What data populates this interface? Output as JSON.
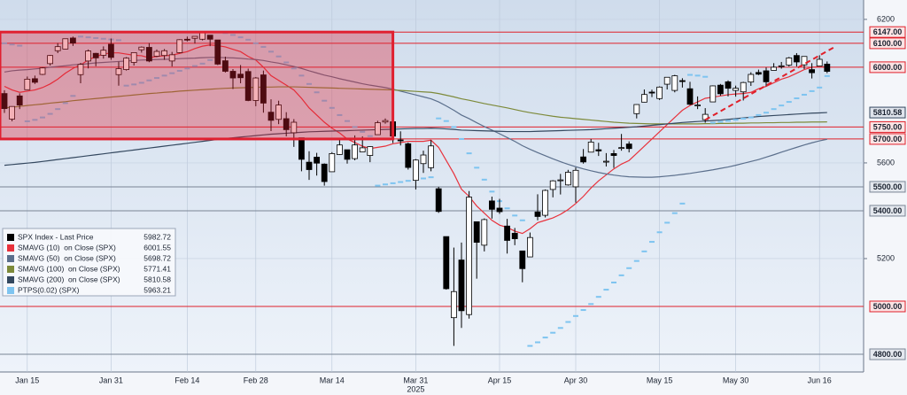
{
  "chart_data": {
    "type": "candlestick",
    "year_label": "2025",
    "categories": [
      null,
      null,
      null,
      "Jan 15",
      null,
      null,
      null,
      null,
      null,
      null,
      null,
      null,
      null,
      null,
      "Jan 31",
      null,
      null,
      null,
      null,
      null,
      null,
      null,
      null,
      null,
      "Feb 14",
      null,
      null,
      null,
      null,
      null,
      null,
      null,
      null,
      "Feb 28",
      null,
      null,
      null,
      null,
      null,
      null,
      null,
      null,
      null,
      "Mar 14",
      null,
      null,
      null,
      null,
      null,
      null,
      null,
      null,
      null,
      null,
      "Mar 31",
      null,
      null,
      null,
      null,
      null,
      null,
      null,
      null,
      null,
      null,
      "Apr 15",
      null,
      null,
      null,
      null,
      null,
      null,
      null,
      null,
      null,
      "Apr 30",
      null,
      null,
      null,
      null,
      null,
      null,
      null,
      null,
      null,
      null,
      "May 15",
      null,
      null,
      null,
      null,
      null,
      null,
      null,
      null,
      null,
      "May 30",
      null,
      null,
      null,
      null,
      null,
      null,
      null,
      null,
      null,
      null,
      "Jun 16",
      null
    ],
    "ylim": [
      4726,
      6281
    ],
    "yticks": [
      6200,
      5600,
      5200
    ],
    "grid": true,
    "background": [
      "#cfdcec",
      "#eef3fa"
    ],
    "levels": [
      {
        "value": 6147,
        "label": "6147.00",
        "color": "#e0202a"
      },
      {
        "value": 6100,
        "label": "6100.00",
        "color": "#e0202a"
      },
      {
        "value": 6000,
        "label": "6000.00",
        "color": "#e0202a"
      },
      {
        "value": 5750,
        "label": "5750.00",
        "color": "#e0202a"
      },
      {
        "value": 5700,
        "label": "5700.00",
        "color": "#e0202a"
      },
      {
        "value": 5500,
        "label": "5500.00",
        "color": "#7a8595"
      },
      {
        "value": 5400,
        "label": "5400.00",
        "color": "#7a8595"
      },
      {
        "value": 5000,
        "label": "5000.00",
        "color": "#e0202a"
      },
      {
        "value": 4800,
        "label": "4800.00",
        "color": "#7a8595"
      }
    ],
    "highlight_box": {
      "x": [
        0,
        51
      ],
      "y": [
        5700,
        6147
      ],
      "color": "#e02030"
    },
    "trend_line": {
      "x": [
        92,
        109
      ],
      "y": [
        5780,
        6085
      ],
      "color": "#e0202a"
    },
    "series": [
      {
        "name": "SPX Index - Last Price",
        "kind": "candle",
        "color": "#000000",
        "open": [
          5890,
          5783,
          5880,
          5906,
          5952,
          5970,
          6015,
          6069,
          6076,
          6122,
          5969,
          6026,
          6058,
          6050,
          6096,
          5969,
          5990,
          6020,
          6073,
          6083,
          6046,
          6049,
          6026,
          6061,
          6117,
          6121,
          6117,
          6134,
          6114,
          6027,
          5983,
          5971,
          5982,
          5861,
          5968,
          5812,
          5782,
          5785,
          5726,
          5705,
          5603,
          5624,
          5595,
          5563,
          5635,
          5655,
          5618,
          5646,
          5631,
          5718,
          5771,
          5772,
          5696,
          5680,
          5527,
          5597,
          5580,
          5492,
          5292,
          4953,
          5194,
          4966,
          5354,
          5256,
          5441,
          5411,
          5336,
          5306,
          5232,
          5207,
          5395,
          5381,
          5489,
          5529,
          5508,
          5500,
          5625,
          5645,
          5655,
          5605,
          5639,
          5663,
          5679,
          5806,
          5854,
          5896,
          5869,
          5929,
          5903,
          5944,
          5910,
          5842,
          5781,
          5855,
          5925,
          5939,
          5903,
          5897,
          5938,
          5978,
          5985,
          5987,
          6005,
          6009,
          6049,
          6010,
          5990,
          6005,
          6013
        ],
        "high": [
          5904,
          5837,
          5891,
          5961,
          5965,
          6000,
          6051,
          6101,
          6119,
          6128,
          6018,
          6074,
          6060,
          6087,
          6120,
          6023,
          6042,
          6062,
          6087,
          6101,
          6074,
          6076,
          6064,
          6117,
          6128,
          6129,
          6147,
          6134,
          6114,
          6044,
          5992,
          6009,
          5994,
          5959,
          5986,
          5866,
          5860,
          5812,
          5783,
          5705,
          5649,
          5642,
          5598,
          5645,
          5703,
          5655,
          5715,
          5711,
          5670,
          5776,
          5786,
          5775,
          5732,
          5685,
          5616,
          5651,
          5695,
          5500,
          5292,
          5246,
          5267,
          5482,
          5354,
          5368,
          5459,
          5450,
          5366,
          5328,
          5232,
          5309,
          5469,
          5489,
          5528,
          5554,
          5571,
          5581,
          5658,
          5700,
          5684,
          5641,
          5654,
          5721,
          5690,
          5845,
          5907,
          5906,
          5920,
          5958,
          5968,
          5954,
          5939,
          5878,
          5829,
          5924,
          5930,
          5945,
          5923,
          5939,
          5979,
          5990,
          5999,
          6017,
          6022,
          6043,
          6059,
          6045,
          6017,
          6050,
          6024
        ],
        "low": [
          5809,
          5774,
          5825,
          5906,
          5930,
          5967,
          6007,
          6059,
          6075,
          6089,
          5933,
          5995,
          6004,
          6036,
          6031,
          5923,
          5986,
          6007,
          6061,
          6021,
          6042,
          6031,
          6003,
          6058,
          6108,
          6099,
          6112,
          6088,
          6009,
          5978,
          5909,
          5933,
          5858,
          5837,
          5810,
          5733,
          5762,
          5711,
          5667,
          5565,
          5529,
          5547,
          5505,
          5563,
          5633,
          5597,
          5611,
          5652,
          5603,
          5718,
          5764,
          5683,
          5673,
          5572,
          5489,
          5558,
          5565,
          5391,
          5070,
          4835,
          4910,
          4949,
          5116,
          5230,
          5367,
          5387,
          5221,
          5256,
          5101,
          5207,
          5360,
          5372,
          5456,
          5468,
          5505,
          5434,
          5597,
          5645,
          5629,
          5585,
          5579,
          5651,
          5644,
          5786,
          5853,
          5875,
          5863,
          5907,
          5895,
          5915,
          5842,
          5825,
          5768,
          5855,
          5881,
          5878,
          5877,
          5861,
          5922,
          5967,
          5921,
          5987,
          5994,
          6003,
          6003,
          5992,
          5953,
          6005,
          5975
        ],
        "values": [
          5827,
          5836,
          5842,
          5950,
          5937,
          5997,
          6049,
          6086,
          6119,
          6101,
          6012,
          6068,
          6039,
          6071,
          6041,
          5994,
          6038,
          6061,
          6084,
          6026,
          6066,
          6069,
          6052,
          6115,
          6115,
          6129,
          6144,
          6117,
          6013,
          5983,
          5955,
          5956,
          5861,
          5955,
          5850,
          5778,
          5842,
          5739,
          5770,
          5615,
          5572,
          5599,
          5522,
          5639,
          5675,
          5615,
          5675,
          5663,
          5668,
          5768,
          5777,
          5712,
          5693,
          5581,
          5612,
          5633,
          5671,
          5397,
          5074,
          5062,
          4982,
          5457,
          5268,
          5363,
          5406,
          5396,
          5276,
          5283,
          5158,
          5288,
          5376,
          5485,
          5525,
          5529,
          5561,
          5569,
          5604,
          5687,
          5650,
          5607,
          5631,
          5664,
          5660,
          5844,
          5886,
          5892,
          5917,
          5958,
          5964,
          5940,
          5845,
          5842,
          5803,
          5922,
          5889,
          5912,
          5912,
          5936,
          5970,
          5971,
          5939,
          6000,
          6006,
          6039,
          6022,
          6045,
          5977,
          6033,
          5982.72
        ]
      },
      {
        "name": "SMAVG (10)  on Close (SPX)",
        "kind": "line",
        "color": "#e8323c",
        "values": [
          5920,
          5905,
          5895,
          5900,
          5905,
          5915,
          5930,
          5950,
          5975,
          5995,
          6010,
          6030,
          6045,
          6055,
          6060,
          6060,
          6055,
          6050,
          6048,
          6040,
          6045,
          6048,
          6050,
          6058,
          6065,
          6078,
          6088,
          6093,
          6090,
          6085,
          6075,
          6065,
          6045,
          6030,
          6000,
          5965,
          5945,
          5925,
          5905,
          5870,
          5830,
          5800,
          5770,
          5745,
          5725,
          5700,
          5685,
          5670,
          5660,
          5665,
          5670,
          5680,
          5685,
          5690,
          5690,
          5690,
          5695,
          5665,
          5610,
          5555,
          5490,
          5460,
          5420,
          5390,
          5360,
          5340,
          5330,
          5315,
          5305,
          5325,
          5350,
          5360,
          5370,
          5385,
          5405,
          5430,
          5460,
          5495,
          5525,
          5550,
          5575,
          5595,
          5610,
          5640,
          5670,
          5700,
          5730,
          5760,
          5790,
          5820,
          5840,
          5855,
          5870,
          5875,
          5880,
          5885,
          5888,
          5890,
          5895,
          5910,
          5920,
          5935,
          5950,
          5960,
          5975,
          5990,
          6000,
          6002,
          6001.55
        ]
      },
      {
        "name": "SMAVG (50)  on Close (SPX)",
        "kind": "line",
        "color": "#5b6f8c",
        "values": [
          5980,
          5985,
          5988,
          5990,
          5993,
          5996,
          6000,
          6003,
          6006,
          6010,
          6012,
          6015,
          6018,
          6020,
          6022,
          6024,
          6026,
          6028,
          6030,
          6031,
          6032,
          6033,
          6034,
          6036,
          6037,
          6038,
          6040,
          6041,
          6041,
          6040,
          6039,
          6037,
          6034,
          6032,
          6028,
          6022,
          6017,
          6010,
          6003,
          5995,
          5985,
          5976,
          5967,
          5960,
          5952,
          5945,
          5938,
          5931,
          5925,
          5920,
          5915,
          5908,
          5900,
          5892,
          5884,
          5876,
          5868,
          5855,
          5838,
          5820,
          5800,
          5785,
          5768,
          5752,
          5737,
          5722,
          5706,
          5690,
          5672,
          5657,
          5643,
          5630,
          5617,
          5605,
          5594,
          5584,
          5575,
          5567,
          5560,
          5554,
          5549,
          5545,
          5542,
          5541,
          5540,
          5540,
          5542,
          5545,
          5548,
          5552,
          5556,
          5561,
          5566,
          5571,
          5577,
          5583,
          5590,
          5598,
          5606,
          5614,
          5624,
          5634,
          5645,
          5655,
          5665,
          5675,
          5684,
          5692,
          5698.72
        ]
      },
      {
        "name": "SMAVG (100)  on Close (SPX)",
        "kind": "line",
        "color": "#7d8a3a",
        "values": [
          5830,
          5833,
          5836,
          5840,
          5843,
          5846,
          5850,
          5853,
          5856,
          5860,
          5863,
          5866,
          5869,
          5872,
          5875,
          5878,
          5881,
          5884,
          5887,
          5890,
          5892,
          5895,
          5897,
          5900,
          5902,
          5904,
          5906,
          5908,
          5910,
          5912,
          5913,
          5914,
          5915,
          5916,
          5917,
          5917,
          5918,
          5918,
          5918,
          5917,
          5916,
          5915,
          5914,
          5913,
          5912,
          5911,
          5910,
          5909,
          5908,
          5907,
          5906,
          5905,
          5903,
          5901,
          5899,
          5897,
          5895,
          5890,
          5883,
          5876,
          5868,
          5862,
          5855,
          5848,
          5842,
          5836,
          5830,
          5823,
          5816,
          5810,
          5805,
          5800,
          5795,
          5791,
          5788,
          5785,
          5782,
          5779,
          5776,
          5773,
          5770,
          5768,
          5766,
          5765,
          5764,
          5763,
          5763,
          5763,
          5763,
          5763,
          5763,
          5763,
          5764,
          5764,
          5765,
          5765,
          5766,
          5766,
          5767,
          5767,
          5768,
          5768,
          5769,
          5769,
          5770,
          5770,
          5771,
          5771,
          5771.41
        ]
      },
      {
        "name": "SMAVG (200)  on Close (SPX)",
        "kind": "line",
        "color": "#34485f",
        "values": [
          5590,
          5593,
          5596,
          5599,
          5602,
          5606,
          5610,
          5614,
          5618,
          5622,
          5626,
          5630,
          5634,
          5638,
          5642,
          5646,
          5650,
          5654,
          5658,
          5662,
          5666,
          5670,
          5674,
          5678,
          5682,
          5686,
          5690,
          5694,
          5698,
          5702,
          5705,
          5708,
          5711,
          5714,
          5717,
          5720,
          5722,
          5724,
          5726,
          5728,
          5730,
          5731,
          5732,
          5733,
          5734,
          5735,
          5736,
          5737,
          5738,
          5739,
          5740,
          5741,
          5742,
          5743,
          5744,
          5744,
          5745,
          5744,
          5742,
          5740,
          5737,
          5736,
          5735,
          5734,
          5733,
          5732,
          5731,
          5731,
          5731,
          5731,
          5732,
          5733,
          5734,
          5735,
          5736,
          5737,
          5738,
          5739,
          5741,
          5743,
          5745,
          5747,
          5749,
          5751,
          5754,
          5757,
          5760,
          5763,
          5766,
          5769,
          5771,
          5773,
          5775,
          5777,
          5779,
          5782,
          5785,
          5788,
          5791,
          5794,
          5796,
          5798,
          5800,
          5802,
          5804,
          5806,
          5808,
          5809,
          5810.58
        ]
      },
      {
        "name": "PTPS(0.02) (SPX)",
        "kind": "dots",
        "color": "#7ec4f0",
        "values": [
          6100,
          6095,
          6090,
          5774,
          5780,
          5790,
          5805,
          5825,
          5850,
          5880,
          6128,
          6125,
          6122,
          6119,
          6116,
          6113,
          5923,
          5928,
          5935,
          5945,
          5955,
          5965,
          5975,
          5985,
          5995,
          6005,
          6015,
          6030,
          6147,
          6143,
          6135,
          6125,
          6115,
          6100,
          6085,
          6065,
          6045,
          6020,
          5995,
          5965,
          5930,
          5895,
          5860,
          5830,
          5800,
          5775,
          5750,
          5730,
          5712,
          5505,
          5510,
          5515,
          5520,
          5525,
          5530,
          5535,
          5540,
          5786,
          5775,
          5750,
          5700,
          5640,
          5580,
          5530,
          5480,
          5440,
          5410,
          5380,
          5360,
          4835,
          4850,
          4870,
          4890,
          4910,
          4935,
          4960,
          4985,
          5010,
          5040,
          5070,
          5100,
          5130,
          5160,
          5190,
          5230,
          5270,
          5310,
          5350,
          5390,
          5430,
          5968,
          5965,
          5960,
          5768,
          5772,
          5776,
          5780,
          5785,
          5790,
          5800,
          5810,
          5825,
          5840,
          5855,
          5870,
          5885,
          5900,
          5915,
          5963.21
        ]
      }
    ],
    "last_value_label_series": 4
  }
}
